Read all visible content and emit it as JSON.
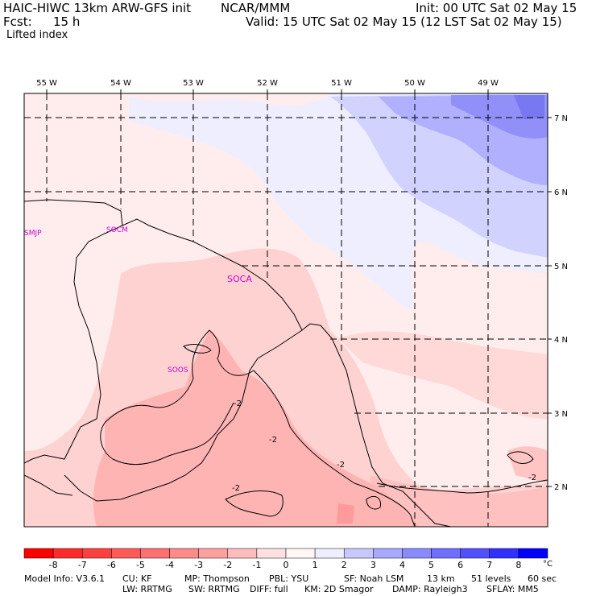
{
  "header": {
    "model_title": "HAIC-HIWC 13km ARW-GFS init",
    "org": "NCAR/MMM",
    "init_time": "Init: 00 UTC Sat 02 May 15",
    "forecast_label": "Fcst:",
    "forecast_hours": "15 h",
    "valid_time": "Valid: 15 UTC Sat 02 May 15 (12 LST Sat 02 May 15)",
    "field_name": "Lifted index"
  },
  "map": {
    "lon_labels": [
      "55 W",
      "54 W",
      "53 W",
      "52 W",
      "51 W",
      "50 W",
      "49 W"
    ],
    "lat_labels": [
      "7 N",
      "6 N",
      "5 N",
      "4 N",
      "3 N",
      "2 N"
    ],
    "stations": [
      "SMJP",
      "SOCM",
      "SOCA",
      "SOOS"
    ],
    "contour_labels": [
      "-2",
      "-2",
      "-2",
      "-2",
      "-2"
    ]
  },
  "colorbar": {
    "ticks": [
      "-8",
      "-7",
      "-6",
      "-5",
      "-4",
      "-3",
      "-2",
      "-1",
      "0",
      "1",
      "2",
      "3",
      "4",
      "5",
      "6",
      "7",
      "8"
    ],
    "unit": "°C",
    "colors": [
      "#ff0000",
      "#ff2a2a",
      "#ff4040",
      "#ff5a5a",
      "#ff7070",
      "#ff8a8a",
      "#ffa0a0",
      "#ffbcbc",
      "#ffe0e0",
      "#fff6f6",
      "#eeeeff",
      "#c8c8ff",
      "#a8a8ff",
      "#8a8aff",
      "#6e6eff",
      "#5050ff",
      "#3030ff",
      "#0000ff"
    ]
  },
  "footer": {
    "line1": [
      "Model Info: V3.6.1",
      "CU: KF",
      "MP: Thompson",
      "PBL: YSU",
      "SF: Noah LSM",
      "13 km",
      "51 levels",
      "60 sec"
    ],
    "line2": [
      "LW: RRTMG",
      "SW: RRTMG",
      "DIFF: full",
      "KM: 2D Smagor",
      "DAMP: Rayleigh3",
      "SFLAY: MM5"
    ]
  }
}
